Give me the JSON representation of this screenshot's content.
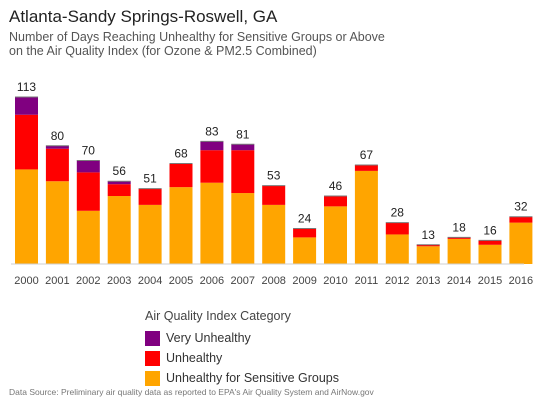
{
  "chart_data": {
    "type": "bar",
    "stacked": true,
    "title": "Atlanta-Sandy Springs-Roswell, GA",
    "subtitle_line1": "Number of Days Reaching Unhealthy for Sensitive Groups or Above",
    "subtitle_line2": "on the Air Quality Index (for Ozone & PM2.5 Combined)",
    "categories": [
      "2000",
      "2001",
      "2002",
      "2003",
      "2004",
      "2005",
      "2006",
      "2007",
      "2008",
      "2009",
      "2010",
      "2011",
      "2012",
      "2013",
      "2014",
      "2015",
      "2016"
    ],
    "totals": [
      113,
      80,
      70,
      56,
      51,
      68,
      83,
      81,
      53,
      24,
      46,
      67,
      28,
      13,
      18,
      16,
      32
    ],
    "series": [
      {
        "name": "Unhealthy for Sensitive Groups",
        "color": "#FFA500",
        "values": [
          64,
          56,
          36,
          46,
          40,
          52,
          55,
          48,
          40,
          18,
          39,
          63,
          20,
          12,
          17,
          13,
          28
        ]
      },
      {
        "name": "Unhealthy",
        "color": "#FF0000",
        "values": [
          37,
          22,
          26,
          8,
          11,
          16,
          22,
          29,
          13,
          6,
          7,
          4,
          8,
          1,
          1,
          3,
          4
        ]
      },
      {
        "name": "Very Unhealthy",
        "color": "#800080",
        "values": [
          12,
          2,
          8,
          2,
          0,
          0,
          6,
          4,
          0,
          0,
          0,
          0,
          0,
          0,
          0,
          0,
          0
        ]
      }
    ],
    "ylim": [
      0,
      120
    ],
    "grid": false,
    "legend_title": "Air Quality Index Category",
    "legend_order": [
      "Very Unhealthy",
      "Unhealthy",
      "Unhealthy for Sensitive Groups"
    ],
    "legend_position": "bottom-center"
  },
  "source": "Data Source: Preliminary air quality data as reported to EPA's Air Quality System and AirNow.gov"
}
